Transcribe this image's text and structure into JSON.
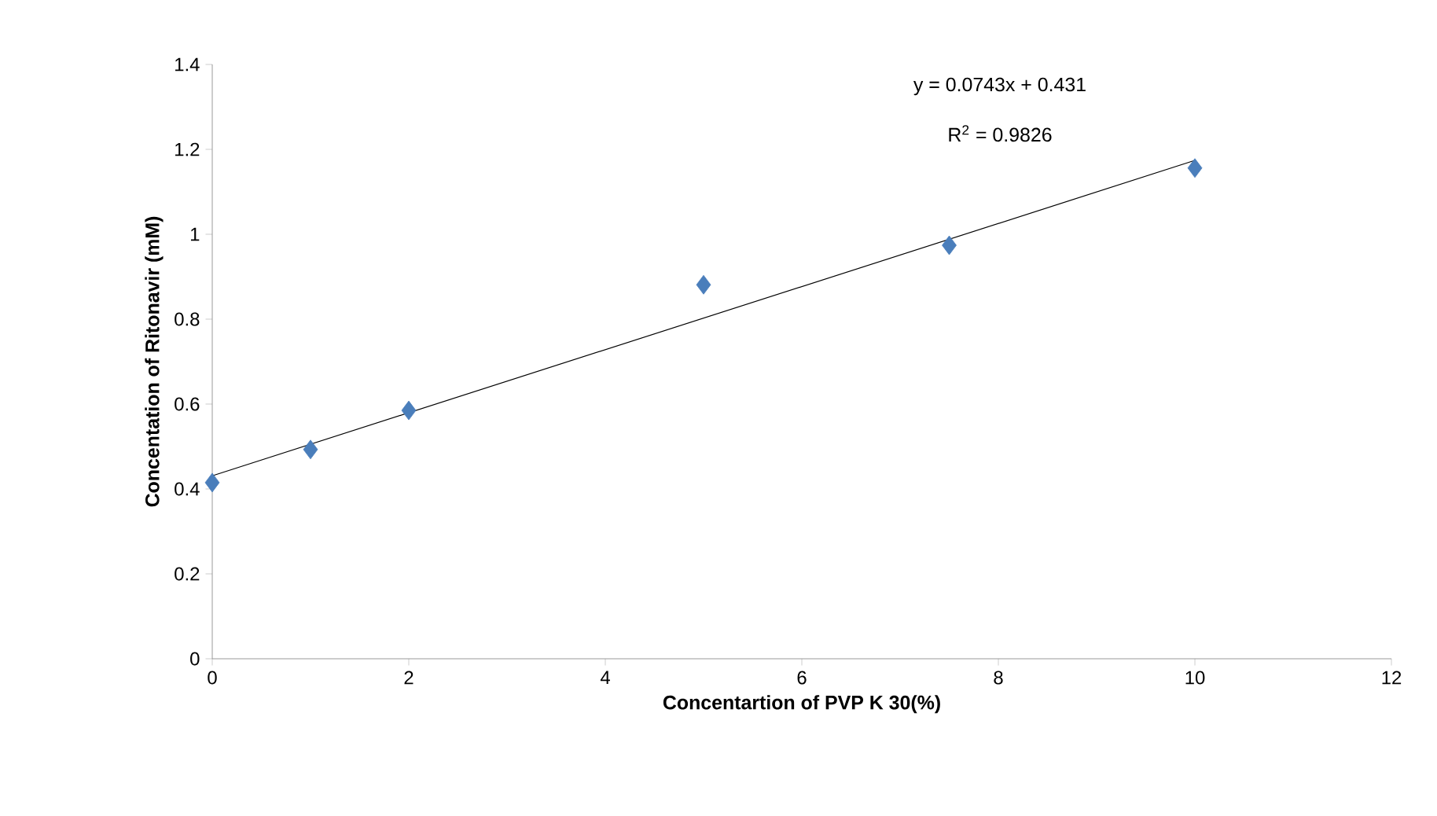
{
  "chart_data": {
    "type": "scatter",
    "xlabel": "Concentartion of PVP K 30(%)",
    "ylabel": "Concentation of Ritonavir (mM)",
    "x": [
      0,
      1,
      2,
      5,
      7.5,
      10
    ],
    "series": [
      {
        "color": "#4a7ebb",
        "marker": "diamond",
        "values": [
          0.415,
          0.493,
          0.585,
          0.881,
          0.974,
          1.156
        ]
      },
      {
        "type": "line",
        "color": "#000000",
        "marker": "none",
        "x": [
          0,
          10
        ],
        "values": [
          0.431,
          1.174
        ]
      }
    ],
    "annotations": [
      "y = 0.0743x + 0.431",
      "R$^{2}$ = 0.9826"
    ],
    "xlim": [
      0,
      12
    ],
    "xticks": [
      0,
      2,
      4,
      6,
      8,
      10,
      12
    ],
    "ylim": [
      0,
      1.4
    ],
    "yticks": [
      0,
      0.2,
      0.4,
      0.6,
      0.8,
      1,
      1.2,
      1.4
    ],
    "grid": false
  }
}
